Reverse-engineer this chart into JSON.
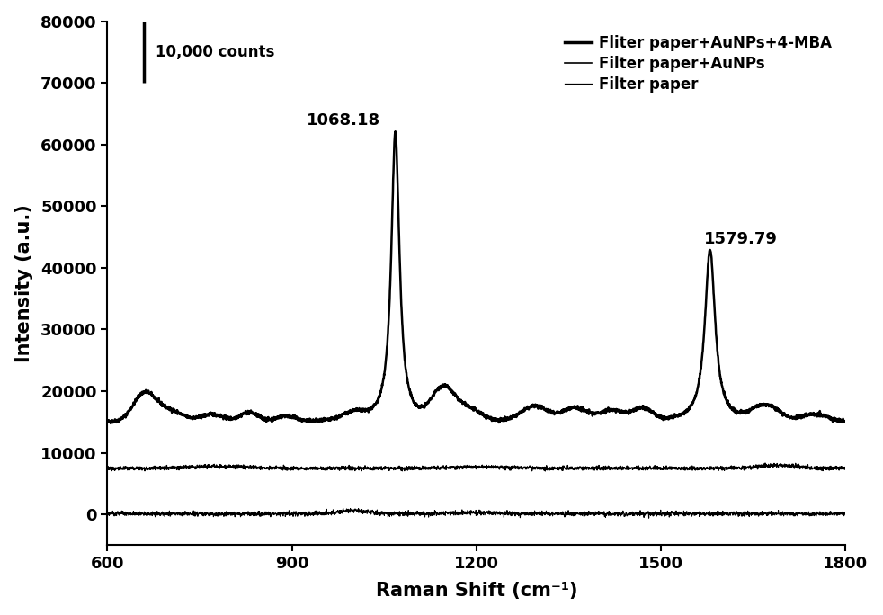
{
  "x_min": 600,
  "x_max": 1800,
  "y_min": -5000,
  "y_max": 80000,
  "xlabel": "Raman Shift (cm⁻¹)",
  "ylabel": "Intensity (a.u.)",
  "legend_labels": [
    "Fliter paper+AuNPs+4-MBA",
    "Filter paper+AuNPs",
    "Filter paper"
  ],
  "peak1_x": 1068.18,
  "peak1_label": "1068.18",
  "peak2_x": 1579.79,
  "peak2_label": "1579.79",
  "scalebar_label": "10,000 counts",
  "scalebar_value": 10000,
  "scalebar_y_bottom": 70000,
  "scalebar_y_top": 80000,
  "scalebar_raman": 660,
  "line_color": "#000000",
  "background_color": "#ffffff",
  "yticks": [
    0,
    10000,
    20000,
    30000,
    40000,
    50000,
    60000,
    70000,
    80000
  ],
  "xticks": [
    600,
    900,
    1200,
    1500,
    1800
  ]
}
